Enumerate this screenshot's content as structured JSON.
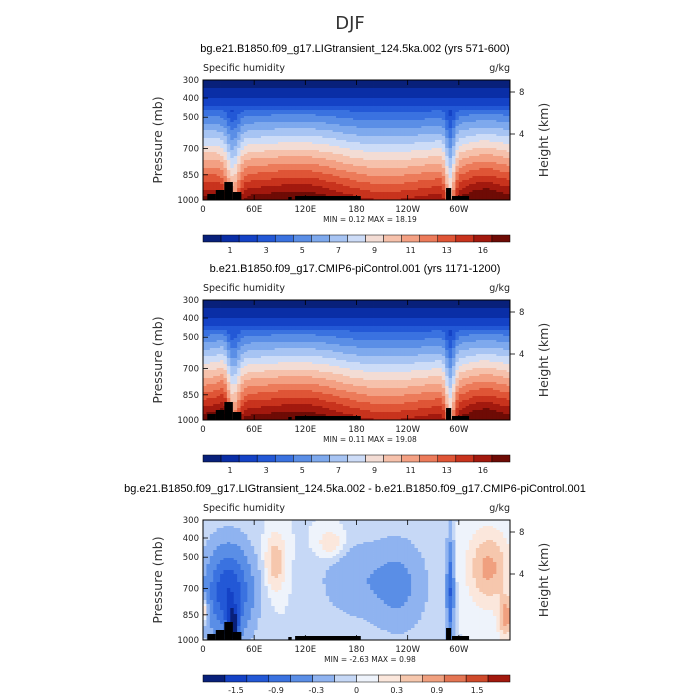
{
  "page_title": "DJF",
  "panels": [
    {
      "title": "bg.e21.B1850.f09_g17.LIGtransient_124.5ka.002 (yrs 571-600)",
      "variable": "Specific humidity",
      "units": "g/kg",
      "min_max": "MIN =    0.12   MAX =   18.19",
      "colorbar_labels": [
        "1",
        "3",
        "5",
        "7",
        "9",
        "11",
        "13",
        "16"
      ]
    },
    {
      "title": "b.e21.B1850.f09_g17.CMIP6-piControl.001 (yrs 1171-1200)",
      "variable": "Specific humidity",
      "units": "g/kg",
      "min_max": "MIN =    0.11   MAX =   19.08",
      "colorbar_labels": [
        "1",
        "3",
        "5",
        "7",
        "9",
        "11",
        "13",
        "16"
      ]
    },
    {
      "title": "bg.e21.B1850.f09_g17.LIGtransient_124.5ka.002 - b.e21.B1850.f09_g17.CMIP6-piControl.001",
      "variable": "Specific humidity",
      "units": "g/kg",
      "min_max": "MIN =  -2.63   MAX =   0.98",
      "colorbar_labels": [
        "-1.5",
        "-0.9",
        "-0.3",
        "0",
        "0.3",
        "0.9",
        "1.5"
      ]
    }
  ],
  "axes": {
    "ylabel": "Pressure (mb)",
    "y2label": "Height (km)",
    "pressure_ticks": [
      "300",
      "400",
      "500",
      "700",
      "850",
      "1000"
    ],
    "height_ticks": [
      "8",
      "4"
    ],
    "lon_ticks": [
      "0",
      "60E",
      "120E",
      "180",
      "120W",
      "60W"
    ]
  },
  "chart_data": [
    {
      "type": "heatmap",
      "title": "bg.e21.B1850.f09_g17.LIGtransient_124.5ka.002 (yrs 571-600)",
      "subtitle": "Specific humidity (g/kg)",
      "xlabel": "Longitude",
      "ylabel": "Pressure (mb)",
      "y2label": "Height (km)",
      "x_range": [
        0,
        360
      ],
      "y_range_mb": [
        1000,
        300
      ],
      "x_ticks": [
        "0",
        "60E",
        "120E",
        "180",
        "120W",
        "60W"
      ],
      "y_ticks": [
        300,
        400,
        500,
        700,
        850,
        1000
      ],
      "min": 0.12,
      "max": 18.19,
      "colorbar_levels": [
        1,
        2,
        3,
        4,
        5,
        6,
        7,
        8,
        9,
        10,
        11,
        12,
        13,
        14,
        16
      ],
      "colors": [
        "#08207a",
        "#0a2ea6",
        "#1442c6",
        "#2358d6",
        "#3a72e0",
        "#5a8ee6",
        "#7ea9ed",
        "#a7c4f3",
        "#cddcf7",
        "#f3dcd4",
        "#f6c1ab",
        "#f3a083",
        "#ec7b5a",
        "#df5536",
        "#c8331d",
        "#a2190e",
        "#6e0b05"
      ],
      "profile_850_rows": [
        {
          "lon": 0,
          "q": 8.5
        },
        {
          "lon": 30,
          "q": 10.5
        },
        {
          "lon": 40,
          "q": 4.5
        },
        {
          "lon": 55,
          "q": 9
        },
        {
          "lon": 100,
          "q": 12
        },
        {
          "lon": 150,
          "q": 13
        },
        {
          "lon": 220,
          "q": 9
        },
        {
          "lon": 280,
          "q": 11
        },
        {
          "lon": 290,
          "q": 6
        },
        {
          "lon": 330,
          "q": 13
        }
      ]
    },
    {
      "type": "heatmap",
      "title": "b.e21.B1850.f09_g17.CMIP6-piControl.001 (yrs 1171-1200)",
      "subtitle": "Specific humidity (g/kg)",
      "xlabel": "Longitude",
      "ylabel": "Pressure (mb)",
      "y2label": "Height (km)",
      "x_range": [
        0,
        360
      ],
      "y_range_mb": [
        1000,
        300
      ],
      "x_ticks": [
        "0",
        "60E",
        "120E",
        "180",
        "120W",
        "60W"
      ],
      "y_ticks": [
        300,
        400,
        500,
        700,
        850,
        1000
      ],
      "min": 0.11,
      "max": 19.08,
      "colorbar_levels": [
        1,
        2,
        3,
        4,
        5,
        6,
        7,
        8,
        9,
        10,
        11,
        12,
        13,
        14,
        16
      ],
      "colors": [
        "#08207a",
        "#0a2ea6",
        "#1442c6",
        "#2358d6",
        "#3a72e0",
        "#5a8ee6",
        "#7ea9ed",
        "#a7c4f3",
        "#cddcf7",
        "#f3dcd4",
        "#f6c1ab",
        "#f3a083",
        "#ec7b5a",
        "#df5536",
        "#c8331d",
        "#a2190e",
        "#6e0b05"
      ]
    },
    {
      "type": "heatmap",
      "title": "bg.e21.B1850.f09_g17.LIGtransient_124.5ka.002 - b.e21.B1850.f09_g17.CMIP6-piControl.001",
      "subtitle": "Specific humidity difference (g/kg)",
      "xlabel": "Longitude",
      "ylabel": "Pressure (mb)",
      "y2label": "Height (km)",
      "x_range": [
        0,
        360
      ],
      "y_range_mb": [
        1000,
        300
      ],
      "x_ticks": [
        "0",
        "60E",
        "120E",
        "180",
        "120W",
        "60W"
      ],
      "y_ticks": [
        300,
        400,
        500,
        700,
        850,
        1000
      ],
      "min": -2.63,
      "max": 0.98,
      "colorbar_levels": [
        -1.5,
        -1.2,
        -0.9,
        -0.6,
        -0.3,
        -0.1,
        0,
        0.1,
        0.3,
        0.6,
        0.9,
        1.2,
        1.5
      ],
      "colors": [
        "#08207a",
        "#1442c6",
        "#2358d6",
        "#3a72e0",
        "#5a8ee6",
        "#8fb3f0",
        "#c6d8f6",
        "#eef3fb",
        "#fbe7dc",
        "#f6c7ad",
        "#f0a07f",
        "#e47553",
        "#cf4a2b",
        "#a2190e"
      ]
    }
  ]
}
